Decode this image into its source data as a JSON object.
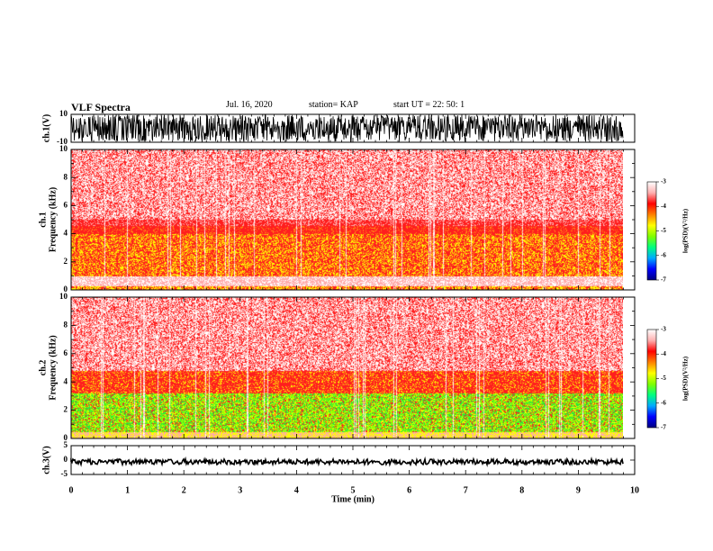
{
  "header": {
    "title": "VLF Spectra",
    "date": "Jul. 16, 2020",
    "station": "station= KAP",
    "start": "start UT =  22: 50: 1"
  },
  "chart_data": [
    {
      "type": "line",
      "panel": "waveform-ch1",
      "ylabel": "ch.1(V)",
      "ylim": [
        -10,
        10
      ],
      "yticks": [
        "10",
        "-10"
      ],
      "xlim": [
        0,
        10
      ],
      "trace_color": "#000000"
    },
    {
      "type": "heatmap",
      "panel": "spectrogram-ch1",
      "ylabel": "ch.1 Frequency (kHz)",
      "ylim": [
        0,
        10
      ],
      "yticks": [
        "0",
        "2",
        "4",
        "6",
        "8",
        "10"
      ],
      "xlim": [
        0,
        10
      ],
      "colorbar": {
        "label": "log(PSD)(V²/Hz)",
        "ticks": [
          "-3",
          "-4",
          "-5",
          "-6",
          "-7"
        ],
        "range": [
          -7,
          -3
        ]
      }
    },
    {
      "type": "heatmap",
      "panel": "spectrogram-ch2",
      "ylabel": "ch.2 Frequency (kHz)",
      "ylim": [
        0,
        10
      ],
      "yticks": [
        "0",
        "2",
        "4",
        "6",
        "8",
        "10"
      ],
      "xlim": [
        0,
        10
      ],
      "colorbar": {
        "label": "log(PSD)(V²/Hz)",
        "ticks": [
          "-3",
          "-4",
          "-5",
          "-6",
          "-7"
        ],
        "range": [
          -7,
          -3
        ]
      }
    },
    {
      "type": "line",
      "panel": "waveform-ch3",
      "ylabel": "ch.3(V)",
      "ylim": [
        -5,
        5
      ],
      "yticks": [
        "5",
        "0",
        "-5"
      ],
      "xlim": [
        0,
        10
      ],
      "trace_color": "#000000"
    }
  ],
  "xaxis": {
    "label": "Time (min)",
    "ticks": [
      "0",
      "1",
      "2",
      "3",
      "4",
      "5",
      "6",
      "7",
      "8",
      "9",
      "10"
    ],
    "data_end": 9.8
  },
  "colors": {
    "colormap": [
      "#000080",
      "#0000ff",
      "#00aaff",
      "#00ff80",
      "#80ff00",
      "#ffff00",
      "#ff8000",
      "#ff0000",
      "#ffb0b0",
      "#ffffff"
    ]
  }
}
